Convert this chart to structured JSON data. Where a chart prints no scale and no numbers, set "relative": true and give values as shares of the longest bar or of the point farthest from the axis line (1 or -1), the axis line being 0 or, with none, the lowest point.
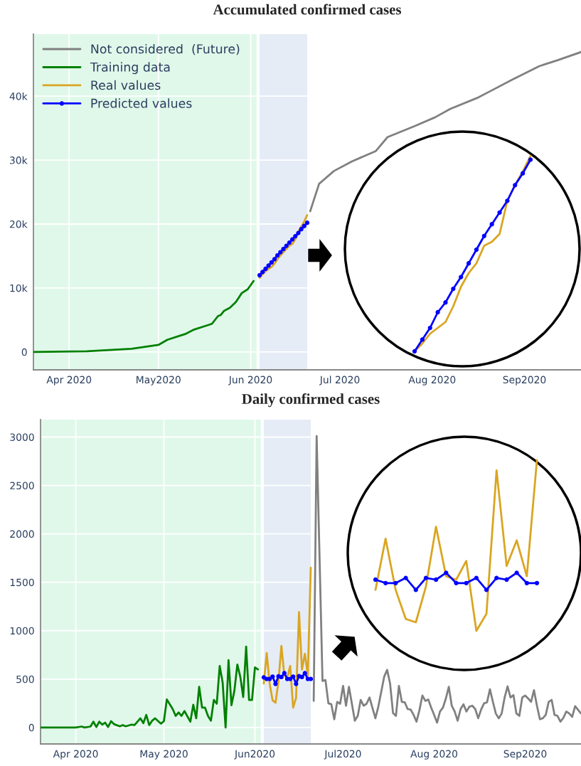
{
  "chart_data": [
    {
      "type": "line",
      "title": "Accumulated confirmed cases",
      "xlim": [
        "2020-03-20",
        "2020-09-20"
      ],
      "xticks": [
        {
          "value": "2020-04-01",
          "label": "Apr 2020"
        },
        {
          "value": "2020-05-01",
          "label": "May2020"
        },
        {
          "value": "2020-06-01",
          "label": "Jun 2020"
        },
        {
          "value": "2020-07-01",
          "label": "Jul 2020"
        },
        {
          "value": "2020-08-01",
          "label": "Aug 2020"
        },
        {
          "value": "2020-09-01",
          "label": "Sep2020"
        }
      ],
      "ylim": [
        -2800,
        49700
      ],
      "yticks": [
        0,
        {
          "value": 10000,
          "label": "10k"
        },
        {
          "value": 20000,
          "label": "20k"
        },
        {
          "value": 30000,
          "label": "30k"
        },
        {
          "value": 40000,
          "label": "40k"
        }
      ],
      "grid": true,
      "legend": "top left",
      "bands": [
        {
          "axis": "x",
          "from": "2020-03-20",
          "to": "2020-06-03",
          "color": "#e0f8ea"
        },
        {
          "axis": "x",
          "from": "2020-06-04",
          "to": "2020-06-20",
          "color": "#e5ecf6"
        }
      ],
      "series": [
        {
          "name": "Not considered  (Future)",
          "color": "#808080",
          "x": [
            "2020-06-21",
            "2020-06-24",
            "2020-06-29",
            "2020-07-05",
            "2020-07-13",
            "2020-07-17",
            "2020-07-26",
            "2020-08-02",
            "2020-08-07",
            "2020-08-16",
            "2020-08-21",
            "2020-08-28",
            "2020-09-06",
            "2020-09-12",
            "2020-09-20"
          ],
          "values": [
            22000,
            26300,
            28300,
            29800,
            31400,
            33600,
            35300,
            36700,
            38000,
            39700,
            40900,
            42600,
            44700,
            45600,
            46900
          ]
        },
        {
          "name": "Training data",
          "color": "#008000",
          "x": [
            "2020-03-20",
            "2020-04-07",
            "2020-04-22",
            "2020-05-01",
            "2020-05-04",
            "2020-05-10",
            "2020-05-13",
            "2020-05-17",
            "2020-05-19",
            "2020-05-21",
            "2020-05-22",
            "2020-05-23",
            "2020-05-25",
            "2020-05-27",
            "2020-05-28",
            "2020-05-29",
            "2020-05-31",
            "2020-06-02"
          ],
          "values": [
            0,
            100,
            500,
            1100,
            1900,
            2800,
            3500,
            4100,
            4400,
            5600,
            5800,
            6400,
            6900,
            7800,
            8500,
            9200,
            9800,
            11100
          ]
        },
        {
          "name": "Real values",
          "color": "#daa520",
          "x": [
            "2020-06-04",
            "2020-06-05",
            "2020-06-06",
            "2020-06-07",
            "2020-06-08",
            "2020-06-09",
            "2020-06-10",
            "2020-06-11",
            "2020-06-12",
            "2020-06-13",
            "2020-06-14",
            "2020-06-15",
            "2020-06-16",
            "2020-06-17",
            "2020-06-18",
            "2020-06-19",
            "2020-06-20"
          ],
          "values": [
            11600,
            12200,
            12600,
            13000,
            13300,
            13800,
            14500,
            15100,
            15600,
            16100,
            16600,
            16900,
            17600,
            18800,
            19600,
            20400,
            21400
          ]
        },
        {
          "name": "Predicted values",
          "color": "#0000ff",
          "marker": "circle",
          "x": [
            "2020-06-04",
            "2020-06-05",
            "2020-06-06",
            "2020-06-07",
            "2020-06-08",
            "2020-06-09",
            "2020-06-10",
            "2020-06-11",
            "2020-06-12",
            "2020-06-13",
            "2020-06-14",
            "2020-06-15",
            "2020-06-16",
            "2020-06-17",
            "2020-06-18",
            "2020-06-19",
            "2020-06-20"
          ],
          "values": [
            12000,
            12500,
            13000,
            13500,
            14000,
            14500,
            15100,
            15600,
            16100,
            16600,
            17100,
            17600,
            18100,
            18600,
            19200,
            19700,
            20200
          ]
        }
      ]
    },
    {
      "type": "line",
      "relative": true,
      "categories": [
        null,
        null,
        null,
        null,
        null,
        null,
        null,
        null,
        null,
        null,
        null,
        null,
        null,
        null,
        null,
        null
      ],
      "series": [
        {
          "color": "#daa520",
          "values": [
            0,
            0.04,
            0.09,
            0.12,
            0.15,
            0.23,
            0.33,
            0.4,
            0.45,
            0.54,
            0.56,
            0.6,
            0.77,
            0.85,
            0.92,
            1
          ]
        },
        {
          "color": "#0000ff",
          "marker": "circle",
          "values": [
            0,
            0.06,
            0.12,
            0.2,
            0.25,
            0.32,
            0.38,
            0.45,
            0.52,
            0.59,
            0.65,
            0.71,
            0.77,
            0.85,
            0.91,
            0.98
          ]
        }
      ]
    },
    {
      "type": "line",
      "title": "Daily confirmed cases",
      "xlim": [
        "2020-03-20",
        "2020-09-20"
      ],
      "xticks": [
        {
          "value": "2020-04-01",
          "label": "Apr 2020"
        },
        {
          "value": "2020-05-01",
          "label": "May 2020"
        },
        {
          "value": "2020-06-01",
          "label": "Jun2020"
        },
        {
          "value": "2020-07-01",
          "label": "Jul2020"
        },
        {
          "value": "2020-08-01",
          "label": "Aug 2020"
        },
        {
          "value": "2020-09-01",
          "label": "Sep2020"
        }
      ],
      "ylim": [
        -170,
        3180
      ],
      "yticks": [
        0,
        500,
        1000,
        1500,
        2000,
        2500,
        3000
      ],
      "grid": true,
      "bands": [
        {
          "axis": "x",
          "from": "2020-03-20",
          "to": "2020-06-03",
          "color": "#e0f8ea"
        },
        {
          "axis": "x",
          "from": "2020-06-04",
          "to": "2020-06-20",
          "color": "#e5ecf6"
        }
      ],
      "series": [
        {
          "color": "#808080",
          "x": [
            "2020-06-21",
            "2020-06-22",
            "2020-06-24",
            "2020-06-25",
            "2020-06-26",
            "2020-06-27",
            "2020-06-28",
            "2020-06-29",
            "2020-06-30",
            "2020-07-01",
            "2020-07-02",
            "2020-07-03",
            "2020-07-05",
            "2020-07-06",
            "2020-07-07",
            "2020-07-08",
            "2020-07-09",
            "2020-07-10",
            "2020-07-12",
            "2020-07-13",
            "2020-07-15",
            "2020-07-16",
            "2020-07-17",
            "2020-07-18",
            "2020-07-19",
            "2020-07-20",
            "2020-07-21",
            "2020-07-22",
            "2020-07-23",
            "2020-07-24",
            "2020-07-25",
            "2020-07-26",
            "2020-07-27",
            "2020-07-28",
            "2020-07-29",
            "2020-07-30",
            "2020-07-31",
            "2020-08-01",
            "2020-08-02",
            "2020-08-03",
            "2020-08-04",
            "2020-08-05",
            "2020-08-06",
            "2020-08-07",
            "2020-08-08",
            "2020-08-09",
            "2020-08-10",
            "2020-08-11",
            "2020-08-12",
            "2020-08-13",
            "2020-08-14",
            "2020-08-15",
            "2020-08-16",
            "2020-08-17",
            "2020-08-18",
            "2020-08-19",
            "2020-08-20",
            "2020-08-21",
            "2020-08-22",
            "2020-08-23",
            "2020-08-24",
            "2020-08-25",
            "2020-08-26",
            "2020-08-27",
            "2020-08-28",
            "2020-08-29",
            "2020-08-30",
            "2020-08-31",
            "2020-09-01",
            "2020-09-02",
            "2020-09-03",
            "2020-09-04",
            "2020-09-05",
            "2020-09-06",
            "2020-09-07",
            "2020-09-08",
            "2020-09-09",
            "2020-09-10",
            "2020-09-11",
            "2020-09-12",
            "2020-09-13",
            "2020-09-14",
            "2020-09-15",
            "2020-09-16",
            "2020-09-17",
            "2020-09-18",
            "2020-09-20"
          ],
          "values": [
            275,
            3010,
            480,
            490,
            250,
            240,
            85,
            265,
            245,
            430,
            225,
            420,
            70,
            120,
            285,
            225,
            245,
            310,
            95,
            215,
            525,
            595,
            455,
            150,
            120,
            430,
            265,
            260,
            190,
            185,
            130,
            60,
            180,
            330,
            275,
            290,
            205,
            130,
            50,
            165,
            205,
            300,
            420,
            225,
            165,
            70,
            190,
            240,
            165,
            215,
            225,
            190,
            95,
            185,
            250,
            260,
            395,
            265,
            145,
            95,
            145,
            310,
            425,
            310,
            335,
            145,
            120,
            310,
            330,
            300,
            265,
            385,
            225,
            85,
            95,
            130,
            265,
            285,
            130,
            120,
            60,
            100,
            165,
            145,
            110,
            220,
            145
          ]
        },
        {
          "color": "#008000",
          "x": [
            "2020-03-20",
            "2020-04-01",
            "2020-04-03",
            "2020-04-04",
            "2020-04-06",
            "2020-04-07",
            "2020-04-08",
            "2020-04-09",
            "2020-04-10",
            "2020-04-11",
            "2020-04-12",
            "2020-04-13",
            "2020-04-14",
            "2020-04-16",
            "2020-04-17",
            "2020-04-18",
            "2020-04-20",
            "2020-04-21",
            "2020-04-23",
            "2020-04-24",
            "2020-04-25",
            "2020-04-26",
            "2020-04-27",
            "2020-04-28",
            "2020-04-30",
            "2020-05-01",
            "2020-05-02",
            "2020-05-04",
            "2020-05-05",
            "2020-05-06",
            "2020-05-07",
            "2020-05-08",
            "2020-05-10",
            "2020-05-11",
            "2020-05-12",
            "2020-05-13",
            "2020-05-14",
            "2020-05-15",
            "2020-05-16",
            "2020-05-17",
            "2020-05-18",
            "2020-05-19",
            "2020-05-20",
            "2020-05-21",
            "2020-05-22",
            "2020-05-23",
            "2020-05-24",
            "2020-05-25",
            "2020-05-26",
            "2020-05-27",
            "2020-05-28",
            "2020-05-29",
            "2020-05-30",
            "2020-05-31",
            "2020-06-01",
            "2020-06-02"
          ],
          "values": [
            0,
            0,
            10,
            0,
            10,
            60,
            5,
            60,
            30,
            50,
            5,
            65,
            35,
            12,
            25,
            12,
            30,
            25,
            95,
            45,
            130,
            25,
            70,
            95,
            40,
            65,
            290,
            190,
            120,
            155,
            120,
            170,
            60,
            235,
            95,
            420,
            205,
            205,
            120,
            70,
            285,
            245,
            635,
            465,
            0,
            695,
            230,
            380,
            650,
            525,
            315,
            835,
            285,
            285,
            620,
            600
          ]
        },
        {
          "color": "#daa520",
          "x": [
            "2020-06-04",
            "2020-06-05",
            "2020-06-06",
            "2020-06-07",
            "2020-06-08",
            "2020-06-09",
            "2020-06-10",
            "2020-06-11",
            "2020-06-12",
            "2020-06-13",
            "2020-06-14",
            "2020-06-15",
            "2020-06-16",
            "2020-06-17",
            "2020-06-18",
            "2020-06-19",
            "2020-06-20"
          ],
          "values": [
            453,
            769,
            453,
            281,
            256,
            475,
            843,
            540,
            518,
            635,
            206,
            307,
            1192,
            598,
            761,
            537,
            1650
          ]
        },
        {
          "color": "#0000ff",
          "marker": "circle",
          "x": [
            "2020-06-04",
            "2020-06-05",
            "2020-06-06",
            "2020-06-07",
            "2020-06-08",
            "2020-06-09",
            "2020-06-10",
            "2020-06-11",
            "2020-06-12",
            "2020-06-13",
            "2020-06-14",
            "2020-06-15",
            "2020-06-16",
            "2020-06-17",
            "2020-06-18",
            "2020-06-19",
            "2020-06-20"
          ],
          "values": [
            518,
            501,
            501,
            526,
            450,
            529,
            521,
            562,
            501,
            501,
            526,
            450,
            530,
            521,
            562,
            501,
            501
          ]
        }
      ]
    },
    {
      "type": "line",
      "relative": true,
      "categories": [
        null,
        null,
        null,
        null,
        null,
        null,
        null,
        null,
        null,
        null,
        null,
        null,
        null,
        null,
        null,
        null,
        null
      ],
      "series": [
        {
          "color": "#daa520",
          "values": [
            0.24,
            0.54,
            0.24,
            0.07,
            0.05,
            0.26,
            0.61,
            0.32,
            0.3,
            0.41,
            0,
            0.1,
            0.94,
            0.38,
            0.53,
            0.32,
            1
          ]
        },
        {
          "color": "#0000ff",
          "marker": "circle",
          "values": [
            0.3,
            0.28,
            0.28,
            0.31,
            0.24,
            0.31,
            0.3,
            0.34,
            0.28,
            0.28,
            0.31,
            0.24,
            0.31,
            0.3,
            0.34,
            0.28,
            0.28
          ]
        }
      ]
    }
  ]
}
